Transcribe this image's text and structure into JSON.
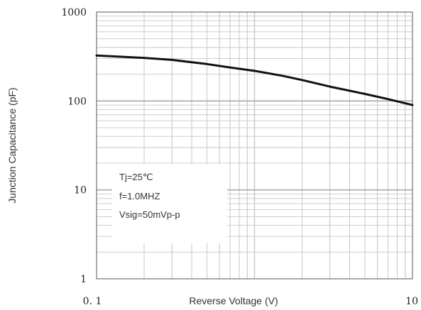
{
  "chart_data": {
    "type": "line",
    "title": "",
    "xlabel": "Reverse Voltage (V)",
    "ylabel": "Junction Capacitance (pF)",
    "x_scale": "log",
    "y_scale": "log",
    "xlim": [
      0.1,
      10
    ],
    "ylim": [
      1,
      1000
    ],
    "x_tick_labels": [
      "0. 1",
      "10"
    ],
    "y_tick_labels": [
      "1000",
      "100",
      "10",
      "1"
    ],
    "grid": true,
    "series": [
      {
        "x": [
          0.1,
          0.2,
          0.3,
          0.5,
          0.7,
          1.0,
          1.5,
          2.0,
          3.0,
          5.0,
          7.0,
          10.0
        ],
        "y": [
          325,
          305,
          290,
          260,
          238,
          218,
          192,
          172,
          145,
          120,
          105,
          90
        ]
      }
    ],
    "annotations": [
      "Tj=25℃",
      "f=1.0MHZ",
      "Vsig=50mVp-p"
    ],
    "colors": {
      "line": "#111111",
      "grid": "#c8c8c8",
      "frame": "#555555"
    }
  }
}
